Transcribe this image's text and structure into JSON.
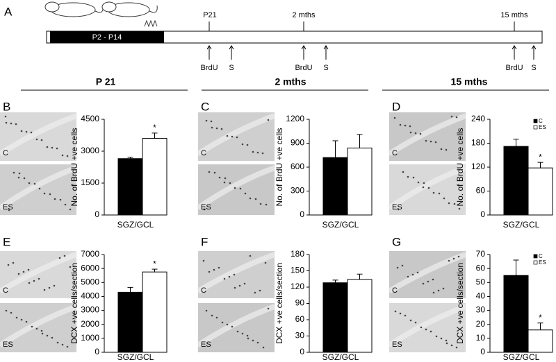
{
  "panel_a": {
    "letter": "A",
    "bar_label": "P2 - P14",
    "timepoints": [
      {
        "label": "P21",
        "markers": [
          "BrdU",
          "S"
        ]
      },
      {
        "label": "2 mths",
        "markers": [
          "BrdU",
          "S"
        ]
      },
      {
        "label": "15 mths",
        "markers": [
          "BrdU",
          "S"
        ]
      }
    ]
  },
  "column_headers": [
    "P 21",
    "2 mths",
    "15 mths"
  ],
  "chart_data": [
    {
      "type": "bar",
      "panel": "B",
      "ylabel": "No. of BrdU +ve cells",
      "categories": [
        "SGZ/GCL"
      ],
      "series": [
        {
          "name": "C",
          "color": "#000000",
          "values": [
            2650
          ],
          "errors": [
            60
          ]
        },
        {
          "name": "ES",
          "color": "#ffffff",
          "values": [
            3600
          ],
          "errors": [
            250
          ]
        }
      ],
      "ylim": [
        0,
        4500
      ],
      "yticks": [
        0,
        1500,
        3000,
        4500
      ],
      "annotation": "*",
      "legend": false
    },
    {
      "type": "bar",
      "panel": "C",
      "ylabel": "No. of BrdU +ve cells",
      "categories": [
        "SGZ/GCL"
      ],
      "series": [
        {
          "name": "C",
          "color": "#000000",
          "values": [
            720
          ],
          "errors": [
            210
          ]
        },
        {
          "name": "ES",
          "color": "#ffffff",
          "values": [
            840
          ],
          "errors": [
            170
          ]
        }
      ],
      "ylim": [
        0,
        1200
      ],
      "yticks": [
        0,
        300,
        600,
        900,
        1200
      ],
      "legend": false
    },
    {
      "type": "bar",
      "panel": "D",
      "ylabel": "No. of BrdU +ve cells",
      "categories": [
        "SGZ/GCL"
      ],
      "series": [
        {
          "name": "C",
          "color": "#000000",
          "values": [
            172
          ],
          "errors": [
            18
          ]
        },
        {
          "name": "ES",
          "color": "#ffffff",
          "values": [
            118
          ],
          "errors": [
            14
          ]
        }
      ],
      "ylim": [
        0,
        240
      ],
      "yticks": [
        0,
        60,
        120,
        180,
        240
      ],
      "annotation": "*",
      "legend": true
    },
    {
      "type": "bar",
      "panel": "E",
      "ylabel": "DCX +ve cells/section",
      "categories": [
        "SGZ/GCL"
      ],
      "series": [
        {
          "name": "C",
          "color": "#000000",
          "values": [
            4300
          ],
          "errors": [
            350
          ]
        },
        {
          "name": "ES",
          "color": "#ffffff",
          "values": [
            5750
          ],
          "errors": [
            200
          ]
        }
      ],
      "ylim": [
        0,
        7000
      ],
      "yticks": [
        0,
        1000,
        2000,
        3000,
        4000,
        5000,
        6000,
        7000
      ],
      "annotation": "*",
      "legend": false
    },
    {
      "type": "bar",
      "panel": "F",
      "ylabel": "DCX +ve cells/section",
      "categories": [
        "SGZ/GCL"
      ],
      "series": [
        {
          "name": "C",
          "color": "#000000",
          "values": [
            128
          ],
          "errors": [
            5
          ]
        },
        {
          "name": "ES",
          "color": "#ffffff",
          "values": [
            134
          ],
          "errors": [
            10
          ]
        }
      ],
      "ylim": [
        0,
        180
      ],
      "yticks": [
        0,
        30,
        60,
        90,
        120,
        150,
        180
      ],
      "legend": false
    },
    {
      "type": "bar",
      "panel": "G",
      "ylabel": "DCX +ve cells/section",
      "categories": [
        "SGZ/GCL"
      ],
      "series": [
        {
          "name": "C",
          "color": "#000000",
          "values": [
            55
          ],
          "errors": [
            11
          ]
        },
        {
          "name": "ES",
          "color": "#ffffff",
          "values": [
            16
          ],
          "errors": [
            5
          ]
        }
      ],
      "ylim": [
        0,
        70
      ],
      "yticks": [
        0,
        10,
        20,
        30,
        40,
        50,
        60,
        70
      ],
      "annotation": "*",
      "legend": true
    }
  ]
}
